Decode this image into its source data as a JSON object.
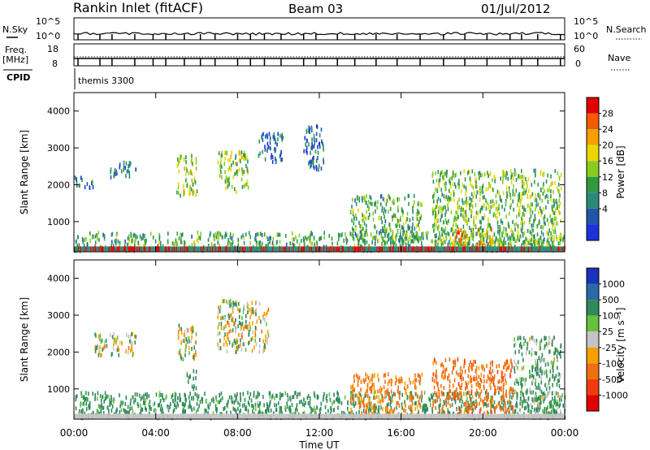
{
  "header": {
    "radar": "Rankin Inlet (fitACF)",
    "beam": "Beam 03",
    "date": "01/Jul/2012"
  },
  "panels": {
    "nsky_label": "N.Sky",
    "nsearch_label": "N.Search",
    "freq_label_line1": "Freq.",
    "freq_label_line2": "[MHz]",
    "nave_label": "Nave",
    "cpid_label": "CPID",
    "cpid_value": "themis 3300",
    "noise_ticks_left": [
      "10^5",
      "10^0"
    ],
    "noise_ticks_right": [
      "10^5",
      "10^0"
    ],
    "freq_ticks_left": [
      "18",
      "8"
    ],
    "freq_ticks_right": [
      "60",
      "0"
    ]
  },
  "axes": {
    "xlabel": "Time UT",
    "ylabel": "Slant Range [km]"
  },
  "colorbars": {
    "power_title": "Power [dB]",
    "power_ticks": [
      "28",
      "24",
      "20",
      "16",
      "12",
      "8",
      "4"
    ],
    "power_colors": [
      "#e00000",
      "#f55a00",
      "#f5a000",
      "#e8d800",
      "#88cc22",
      "#2f9a3f",
      "#2a8a7a",
      "#2255aa",
      "#1a33dd"
    ],
    "velocity_title": "Velocity [m s⁻¹]",
    "velocity_ticks": [
      "1000",
      "500",
      "100",
      "25",
      "-25",
      "-100",
      "-500",
      "-1000"
    ],
    "velocity_colors": [
      "#1a33bb",
      "#2a6aa5",
      "#2f8a5a",
      "#66c23a",
      "#c4c4c4",
      "#f5a000",
      "#ef7010",
      "#f03b10",
      "#e00000"
    ]
  },
  "chart_data": {
    "type": "heatmap",
    "title": "Rankin Inlet (fitACF)  Beam 03  01/Jul/2012",
    "xlabel": "Time UT",
    "ylabel": "Slant Range [km]",
    "x_range_hours": [
      0,
      24
    ],
    "x_ticks": [
      "00:00",
      "04:00",
      "08:00",
      "12:00",
      "16:00",
      "20:00",
      "00:00"
    ],
    "y_range_km": [
      180,
      4500
    ],
    "y_ticks": [
      1000,
      2000,
      3000,
      4000
    ],
    "panels": [
      {
        "name": "Power",
        "unit": "dB",
        "color_ticks": [
          4,
          8,
          12,
          16,
          20,
          24,
          28
        ],
        "echo_regions": [
          {
            "t_start": 0.0,
            "t_end": 24.0,
            "r_start": 200,
            "r_end": 700,
            "dominant_value": 12
          },
          {
            "t_start": 0.0,
            "t_end": 1.0,
            "r_start": 1900,
            "r_end": 2200,
            "dominant_value": 6
          },
          {
            "t_start": 1.7,
            "t_end": 3.0,
            "r_start": 2200,
            "r_end": 2600,
            "dominant_value": 6
          },
          {
            "t_start": 5.0,
            "t_end": 6.0,
            "r_start": 1700,
            "r_end": 2800,
            "dominant_value": 16
          },
          {
            "t_start": 7.0,
            "t_end": 8.5,
            "r_start": 1800,
            "r_end": 2900,
            "dominant_value": 16
          },
          {
            "t_start": 9.0,
            "t_end": 10.2,
            "r_start": 2600,
            "r_end": 3400,
            "dominant_value": 5
          },
          {
            "t_start": 11.2,
            "t_end": 12.2,
            "r_start": 2400,
            "r_end": 3600,
            "dominant_value": 5
          },
          {
            "t_start": 13.5,
            "t_end": 17.0,
            "r_start": 400,
            "r_end": 1700,
            "dominant_value": 12
          },
          {
            "t_start": 17.5,
            "t_end": 23.8,
            "r_start": 300,
            "r_end": 2400,
            "dominant_value": 14
          },
          {
            "t_start": 18.5,
            "t_end": 20.5,
            "r_start": 250,
            "r_end": 800,
            "dominant_value": 24
          }
        ]
      },
      {
        "name": "Velocity",
        "unit": "m s-1",
        "color_ticks": [
          1000,
          500,
          100,
          25,
          -25,
          -100,
          -500,
          -1000
        ],
        "echo_regions": [
          {
            "t_start": 0.0,
            "t_end": 24.0,
            "r_start": 200,
            "r_end": 900,
            "dominant_value": 150
          },
          {
            "t_start": 1.0,
            "t_end": 3.0,
            "r_start": 1900,
            "r_end": 2500,
            "dominant_value": 0
          },
          {
            "t_start": 5.0,
            "t_end": 6.0,
            "r_start": 1800,
            "r_end": 2800,
            "dominant_value": 0
          },
          {
            "t_start": 7.0,
            "t_end": 9.5,
            "r_start": 2000,
            "r_end": 3400,
            "dominant_value": 0
          },
          {
            "t_start": 5.5,
            "t_end": 6.0,
            "r_start": 1000,
            "r_end": 1500,
            "dominant_value": 150
          },
          {
            "t_start": 13.5,
            "t_end": 17.0,
            "r_start": 300,
            "r_end": 1400,
            "dominant_value": -150
          },
          {
            "t_start": 17.5,
            "t_end": 21.5,
            "r_start": 300,
            "r_end": 1800,
            "dominant_value": -200
          },
          {
            "t_start": 21.5,
            "t_end": 23.8,
            "r_start": 300,
            "r_end": 2400,
            "dominant_value": 100
          }
        ]
      }
    ],
    "grid": false
  }
}
